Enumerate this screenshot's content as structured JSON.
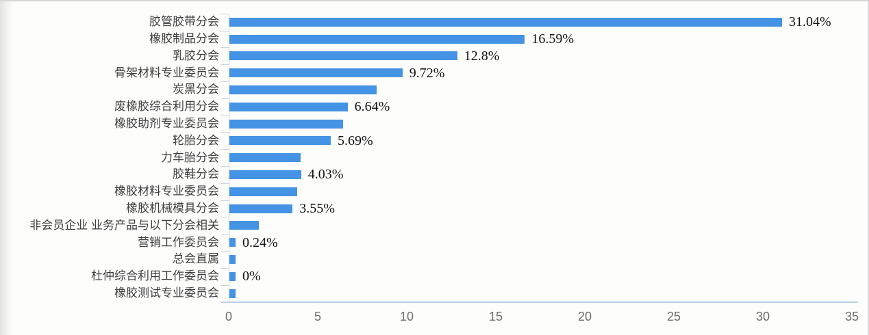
{
  "chart_data": {
    "type": "bar",
    "orientation": "horizontal",
    "title": "",
    "xlabel": "",
    "ylabel": "",
    "xlim": [
      0,
      35
    ],
    "x_ticks": [
      0,
      5,
      10,
      15,
      20,
      25,
      30,
      35
    ],
    "grid": false,
    "legend": false,
    "categories": [
      "胶管胶带分会",
      "橡胶制品分会",
      "乳胶分会",
      "骨架材料专业委员会",
      "炭黑分会",
      "废橡胶综合利用分会",
      "橡胶助剂专业委员会",
      "轮胎分会",
      "力车胎分会",
      "胶鞋分会",
      "橡胶材料专业委员会",
      "橡胶机械模具分会",
      "非会员企业 业务产品与以下分会相关",
      "营销工作委员会",
      "总会直属",
      "杜仲综合利用工作委员会",
      "橡胶测试专业委员会"
    ],
    "values": [
      31.04,
      16.59,
      12.8,
      9.72,
      8.25,
      6.64,
      6.4,
      5.69,
      4.0,
      4.03,
      3.8,
      3.55,
      1.65,
      0.24,
      0.3,
      0,
      0.3
    ],
    "value_labels": [
      "31.04%",
      "16.59%",
      "12.8%",
      "9.72%",
      null,
      "6.64%",
      null,
      "5.69%",
      null,
      "4.03%",
      null,
      "3.55%",
      null,
      "0.24%",
      null,
      "0%",
      null
    ],
    "colors": {
      "bar": "#4593e4",
      "axis_line": "#b9d0e4",
      "tick_mark": "#ccd6e0",
      "category_label": "#3f3f3f",
      "axis_tick_label": "#6e6e6e",
      "data_label": "#111111"
    }
  }
}
